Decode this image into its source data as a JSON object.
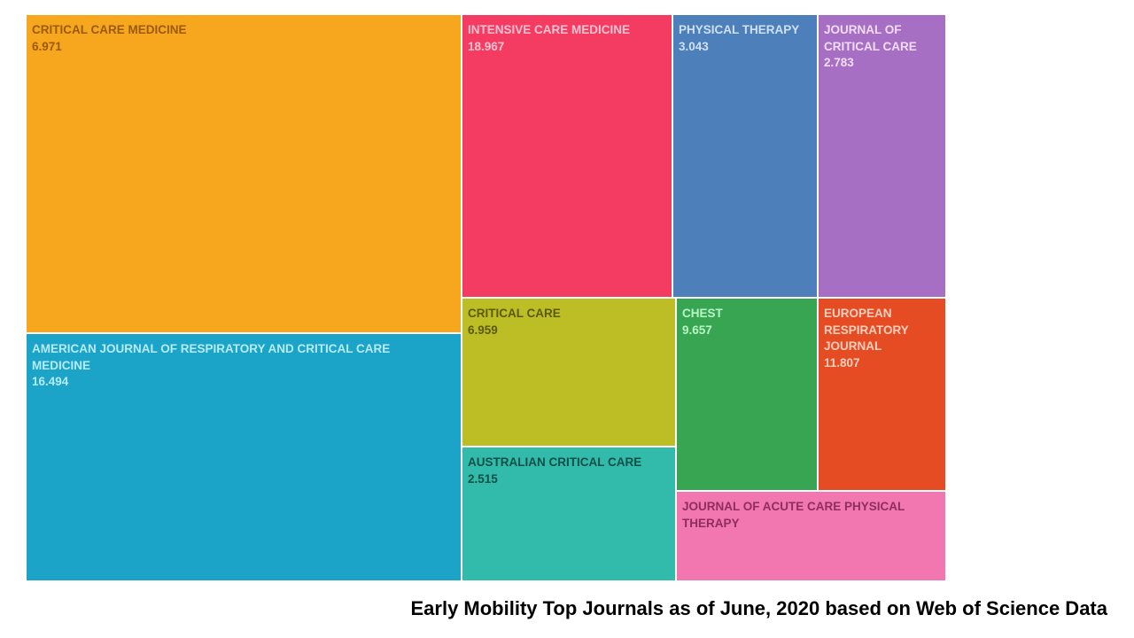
{
  "chart_data": {
    "type": "treemap",
    "title": "Early Mobility Top Journals as of June, 2020 based on Web of Science Data",
    "items": [
      {
        "name": "CRITICAL CARE MEDICINE",
        "value": "6.971",
        "color": "#F7A71E",
        "text_color": "#9A5A06"
      },
      {
        "name": "AMERICAN JOURNAL OF RESPIRATORY AND CRITICAL CARE MEDICINE",
        "value": "16.494",
        "color": "#1BA4C8",
        "text_color": "#B6EBF8"
      },
      {
        "name": "INTENSIVE CARE MEDICINE",
        "value": "18.967",
        "color": "#F43C63",
        "text_color": "#FFC2D0"
      },
      {
        "name": "PHYSICAL THERAPY",
        "value": "3.043",
        "color": "#4D7FBB",
        "text_color": "#CFE0F7"
      },
      {
        "name": "JOURNAL OF CRITICAL CARE",
        "value": "2.783",
        "color": "#A76FC3",
        "text_color": "#F0DDFA"
      },
      {
        "name": "CRITICAL CARE",
        "value": "6.959",
        "color": "#BDBE25",
        "text_color": "#5A5A08"
      },
      {
        "name": "AUSTRALIAN CRITICAL CARE",
        "value": "2.515",
        "color": "#32BBAA",
        "text_color": "#0E4F47"
      },
      {
        "name": "CHEST",
        "value": "9.657",
        "color": "#38A553",
        "text_color": "#B8F7C4"
      },
      {
        "name": "EUROPEAN RESPIRATORY JOURNAL",
        "value": "11.807",
        "color": "#E64C24",
        "text_color": "#FFD0BE"
      },
      {
        "name": "JOURNAL OF ACUTE CARE PHYSICAL THERAPY",
        "value": "",
        "color": "#F277B0",
        "text_color": "#8E2D5E"
      }
    ]
  }
}
